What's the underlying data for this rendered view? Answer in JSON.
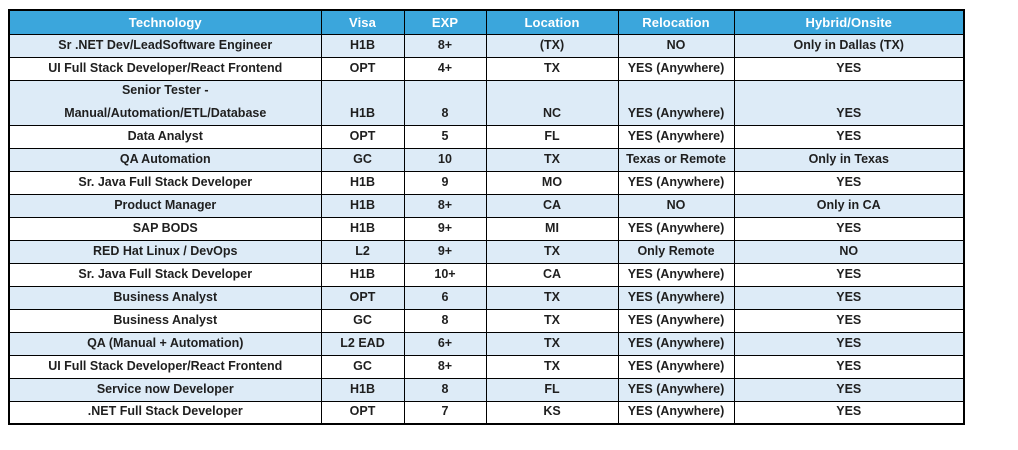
{
  "header": {
    "columns": [
      "Technology",
      "Visa",
      "EXP",
      "Location",
      "Relocation",
      "Hybrid/Onsite"
    ]
  },
  "rows": [
    {
      "technology": "Sr .NET Dev/LeadSoftware Engineer",
      "visa": "H1B",
      "exp": "8+",
      "location": "(TX)",
      "relocation": "NO",
      "hybrid_onsite": "Only in Dallas (TX)"
    },
    {
      "technology": "UI Full Stack Developer/React Frontend",
      "visa": "OPT",
      "exp": "4+",
      "location": "TX",
      "relocation": "YES (Anywhere)",
      "hybrid_onsite": "YES"
    },
    {
      "technology_lines": [
        "Senior Tester -",
        "Manual/Automation/ETL/Database"
      ],
      "visa": "H1B",
      "exp": "8",
      "location": "NC",
      "relocation": "YES (Anywhere)",
      "hybrid_onsite": "YES"
    },
    {
      "technology": "Data Analyst",
      "visa": "OPT",
      "exp": "5",
      "location": "FL",
      "relocation": "YES (Anywhere)",
      "hybrid_onsite": "YES"
    },
    {
      "technology": "QA Automation",
      "visa": "GC",
      "exp": "10",
      "location": "TX",
      "relocation": "Texas or Remote",
      "hybrid_onsite": "Only in Texas"
    },
    {
      "technology": "Sr. Java Full Stack Developer",
      "visa": "H1B",
      "exp": "9",
      "location": "MO",
      "relocation": "YES (Anywhere)",
      "hybrid_onsite": "YES"
    },
    {
      "technology": "Product Manager",
      "visa": "H1B",
      "exp": "8+",
      "location": "CA",
      "relocation": "NO",
      "hybrid_onsite": "Only in CA"
    },
    {
      "technology": "SAP BODS",
      "visa": "H1B",
      "exp": "9+",
      "location": "MI",
      "relocation": "YES (Anywhere)",
      "hybrid_onsite": "YES"
    },
    {
      "technology": "RED Hat Linux / DevOps",
      "visa": "L2",
      "exp": "9+",
      "location": "TX",
      "relocation": "Only Remote",
      "hybrid_onsite": "NO"
    },
    {
      "technology": "Sr. Java Full Stack Developer",
      "visa": "H1B",
      "exp": "10+",
      "location": "CA",
      "relocation": "YES (Anywhere)",
      "hybrid_onsite": "YES"
    },
    {
      "technology": "Business Analyst",
      "visa": "OPT",
      "exp": "6",
      "location": "TX",
      "relocation": "YES (Anywhere)",
      "hybrid_onsite": "YES"
    },
    {
      "technology": "Business Analyst",
      "visa": "GC",
      "exp": "8",
      "location": "TX",
      "relocation": "YES (Anywhere)",
      "hybrid_onsite": "YES"
    },
    {
      "technology": "QA (Manual + Automation)",
      "visa": "L2 EAD",
      "exp": "6+",
      "location": "TX",
      "relocation": "YES (Anywhere)",
      "hybrid_onsite": "YES"
    },
    {
      "technology": "UI Full Stack Developer/React Frontend",
      "visa": "GC",
      "exp": "8+",
      "location": "TX",
      "relocation": "YES (Anywhere)",
      "hybrid_onsite": "YES"
    },
    {
      "technology": "Service now Developer",
      "visa": "H1B",
      "exp": "8",
      "location": "FL",
      "relocation": "YES (Anywhere)",
      "hybrid_onsite": "YES"
    },
    {
      "technology": ".NET Full Stack Developer",
      "visa": "OPT",
      "exp": "7",
      "location": "KS",
      "relocation": "YES (Anywhere)",
      "hybrid_onsite": "YES"
    }
  ],
  "colors": {
    "header_bg": "#3BA6DC",
    "header_text": "#FFFFFF",
    "row_shaded_bg": "#DDEBF7",
    "body_text": "#1F1F1F",
    "border": "#000000"
  }
}
